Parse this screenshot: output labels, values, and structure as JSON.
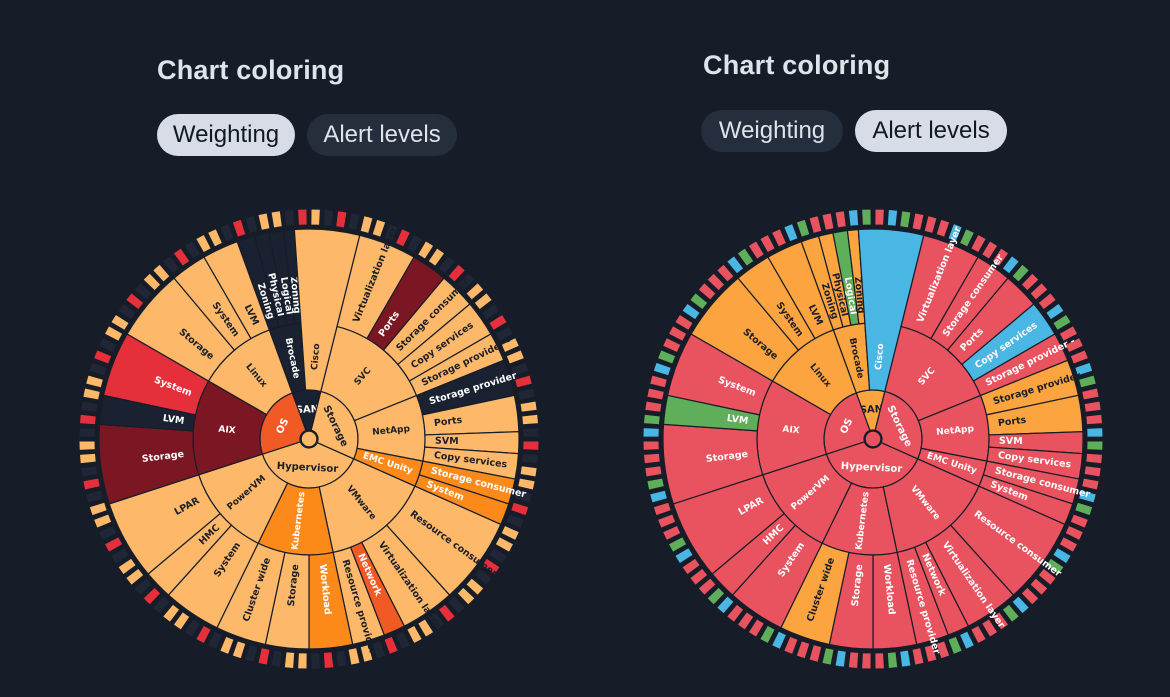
{
  "panels": [
    {
      "heading": "Chart coloring",
      "toggle": {
        "weighting": "Weighting",
        "alert_levels": "Alert levels",
        "active": "weighting"
      }
    },
    {
      "heading": "Chart coloring",
      "toggle": {
        "weighting": "Weighting",
        "alert_levels": "Alert levels",
        "active": "alert_levels"
      }
    }
  ],
  "chart_data": [
    {
      "type": "sunburst",
      "coloring": "Weighting",
      "tree": [
        {
          "name": "SAN",
          "children": [
            {
              "name": "Brocade",
              "children": [
                {
                  "name": "Zoning"
                },
                {
                  "name": "Physical"
                },
                {
                  "name": "Logical"
                },
                {
                  "name": "Zoning"
                }
              ]
            },
            {
              "name": "Cisco"
            }
          ]
        },
        {
          "name": "Storage",
          "children": [
            {
              "name": "SVC",
              "children": [
                {
                  "name": "Virtualization layer"
                },
                {
                  "name": "Ports"
                },
                {
                  "name": "Storage consumer"
                },
                {
                  "name": "Copy services"
                },
                {
                  "name": "Storage provider -"
                }
              ]
            },
            {
              "name": "NetApp",
              "children": [
                {
                  "name": "Storage provider"
                },
                {
                  "name": "Ports"
                },
                {
                  "name": "SVM"
                },
                {
                  "name": "Copy services"
                }
              ]
            },
            {
              "name": "EMC Unity",
              "children": [
                {
                  "name": "Storage consumer"
                },
                {
                  "name": "System"
                }
              ]
            }
          ]
        },
        {
          "name": "Hypervisor",
          "children": [
            {
              "name": "VMware",
              "children": [
                {
                  "name": "Resource consumer"
                },
                {
                  "name": "Virtualization layer"
                },
                {
                  "name": "Network"
                },
                {
                  "name": "Resource provider"
                }
              ]
            },
            {
              "name": "Kubernetes",
              "children": [
                {
                  "name": "Workload"
                },
                {
                  "name": "Storage"
                },
                {
                  "name": "Cluster wide"
                }
              ]
            },
            {
              "name": "PowerVM",
              "children": [
                {
                  "name": "System"
                },
                {
                  "name": "HMC"
                },
                {
                  "name": "LPAR"
                }
              ]
            }
          ]
        },
        {
          "name": "OS",
          "children": [
            {
              "name": "AIX",
              "children": [
                {
                  "name": "Storage"
                },
                {
                  "name": "LVM"
                },
                {
                  "name": "System"
                }
              ]
            },
            {
              "name": "Linux",
              "children": [
                {
                  "name": "Storage"
                },
                {
                  "name": "System"
                },
                {
                  "name": "LVM"
                }
              ]
            }
          ]
        }
      ]
    },
    {
      "type": "sunburst",
      "coloring": "Alert levels",
      "tree": [
        {
          "name": "SAN",
          "children": [
            {
              "name": "Brocade",
              "children": [
                {
                  "name": "Zoning"
                },
                {
                  "name": "Physical"
                },
                {
                  "name": "Logical"
                },
                {
                  "name": "Zoning"
                }
              ]
            },
            {
              "name": "Cisco"
            }
          ]
        },
        {
          "name": "Storage",
          "children": [
            {
              "name": "SVC",
              "children": [
                {
                  "name": "Virtualization layer"
                },
                {
                  "name": "Storage consumer"
                },
                {
                  "name": "Ports"
                },
                {
                  "name": "Copy services"
                },
                {
                  "name": "Storage provider -"
                }
              ]
            },
            {
              "name": "NetApp",
              "children": [
                {
                  "name": "Storage provider"
                },
                {
                  "name": "Ports"
                },
                {
                  "name": "SVM"
                },
                {
                  "name": "Copy services"
                }
              ]
            },
            {
              "name": "EMC Unity",
              "children": [
                {
                  "name": "Storage consumer"
                },
                {
                  "name": "System"
                }
              ]
            }
          ]
        },
        {
          "name": "Hypervisor",
          "children": [
            {
              "name": "VMware",
              "children": [
                {
                  "name": "Resource consumer"
                },
                {
                  "name": "Virtualization layer"
                },
                {
                  "name": "Network"
                },
                {
                  "name": "Resource provider"
                }
              ]
            },
            {
              "name": "Kubernetes",
              "children": [
                {
                  "name": "Workload"
                },
                {
                  "name": "Storage"
                },
                {
                  "name": "Cluster wide"
                }
              ]
            },
            {
              "name": "PowerVM",
              "children": [
                {
                  "name": "System"
                },
                {
                  "name": "HMC"
                },
                {
                  "name": "LPAR"
                }
              ]
            }
          ]
        },
        {
          "name": "OS",
          "children": [
            {
              "name": "AIX",
              "children": [
                {
                  "name": "Storage"
                },
                {
                  "name": "LVM"
                },
                {
                  "name": "System"
                }
              ]
            },
            {
              "name": "Linux",
              "children": [
                {
                  "name": "Storage"
                },
                {
                  "name": "System"
                },
                {
                  "name": "LVM"
                }
              ]
            }
          ]
        }
      ]
    }
  ]
}
